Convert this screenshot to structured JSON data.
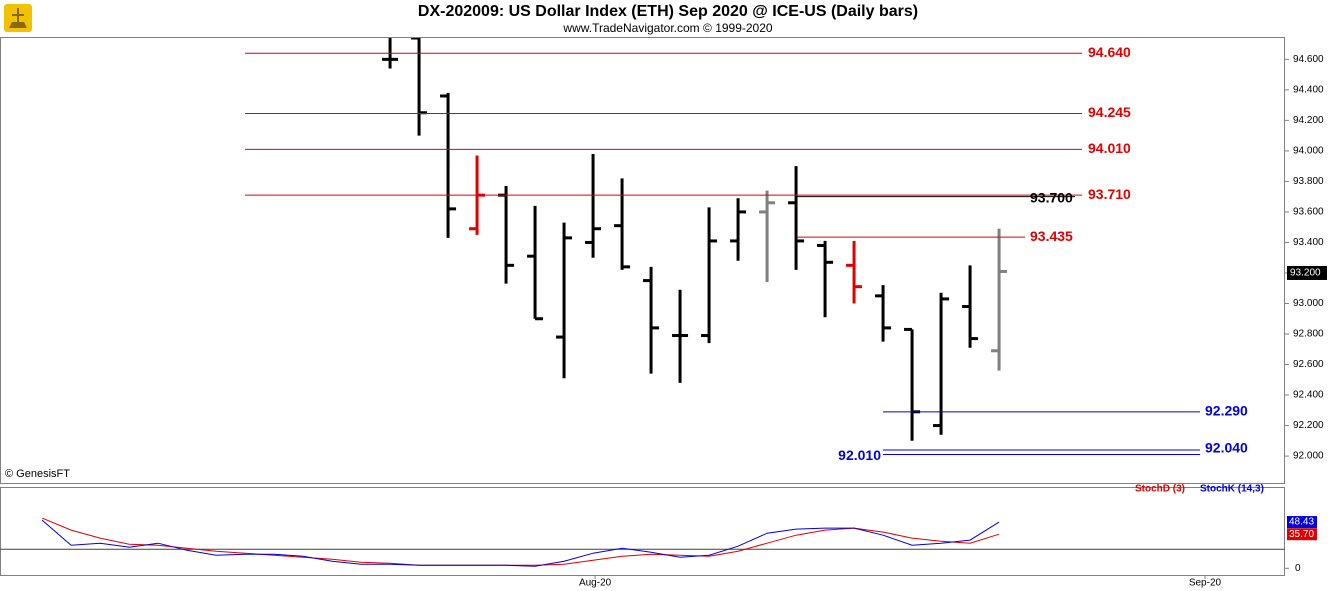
{
  "chart_data": [
    {
      "type": "ohlc",
      "title": "DX-202009:  US Dollar Index (ETH) Sep 2020 @ ICE-US  (Daily bars)",
      "subtitle": "www.TradeNavigator.com © 1999-2020",
      "source": "© GenesisFT",
      "x": [
        0,
        1,
        2,
        3,
        4,
        5,
        6,
        7,
        8,
        9,
        10,
        11,
        12,
        13,
        14,
        15,
        16,
        17,
        18,
        19,
        20,
        21
      ],
      "open": [
        94.6,
        94.74,
        94.36,
        93.49,
        93.71,
        93.31,
        92.78,
        93.4,
        93.51,
        93.15,
        92.79,
        92.79,
        93.41,
        93.6,
        93.66,
        93.38,
        93.25,
        93.05,
        92.83,
        92.2,
        92.98,
        92.69
      ],
      "high": [
        94.75,
        94.74,
        94.38,
        93.97,
        93.77,
        93.64,
        93.53,
        93.98,
        93.82,
        93.24,
        93.09,
        93.63,
        93.69,
        93.74,
        93.9,
        93.41,
        93.41,
        93.12,
        92.83,
        93.07,
        93.25,
        93.49
      ],
      "low": [
        94.54,
        94.1,
        93.43,
        93.45,
        93.13,
        92.9,
        92.51,
        93.3,
        93.22,
        92.54,
        92.48,
        92.74,
        93.28,
        93.14,
        93.22,
        92.91,
        93.0,
        92.75,
        92.1,
        92.14,
        92.71,
        92.56
      ],
      "close": [
        94.6,
        94.25,
        93.62,
        93.71,
        93.25,
        92.9,
        93.43,
        93.49,
        93.24,
        92.84,
        92.79,
        93.41,
        93.6,
        93.66,
        93.41,
        93.27,
        93.11,
        92.84,
        92.29,
        93.03,
        92.77,
        93.21
      ],
      "colors": [
        "#000000",
        "#000000",
        "#000000",
        "#e00000",
        "#000000",
        "#000000",
        "#000000",
        "#000000",
        "#000000",
        "#000000",
        "#000000",
        "#000000",
        "#000000",
        "#808080",
        "#000000",
        "#000000",
        "#e00000",
        "#000000",
        "#000000",
        "#000000",
        "#000000",
        "#808080"
      ],
      "levels": [
        {
          "value": 94.64,
          "label": "94.640",
          "color": "#e00000"
        },
        {
          "value": 94.245,
          "label": "94.245",
          "color": "#e00000"
        },
        {
          "value": 94.01,
          "label": "94.010",
          "color": "#e00000"
        },
        {
          "value": 93.71,
          "label": "93.710",
          "color": "#e00000"
        },
        {
          "value": 93.7,
          "label": "93.700",
          "color": "#000000"
        },
        {
          "value": 93.435,
          "label": "93.435",
          "color": "#e00000"
        },
        {
          "value": 92.29,
          "label": "92.290",
          "color": "#0000e0"
        },
        {
          "value": 92.04,
          "label": "92.040",
          "color": "#0000e0"
        },
        {
          "value": 92.01,
          "label": "92.010",
          "color": "#0000e0"
        }
      ],
      "last_price": {
        "value": 93.2,
        "label": "93.200"
      },
      "xlim": [
        -13.45,
        30.86
      ],
      "xticks": [
        {
          "value": 7.07,
          "label": "Aug-20"
        },
        {
          "value": 28.1,
          "label": "Sep-20"
        }
      ],
      "ylim": [
        91.83,
        94.74
      ],
      "yticks": [
        {
          "value": 92.0,
          "label": "92.000"
        },
        {
          "value": 92.2,
          "label": "92.200"
        },
        {
          "value": 92.4,
          "label": "92.400"
        },
        {
          "value": 92.6,
          "label": "92.600"
        },
        {
          "value": 92.8,
          "label": "92.800"
        },
        {
          "value": 93.0,
          "label": "93.000"
        },
        {
          "value": 93.2,
          "label": "93.200"
        },
        {
          "value": 93.4,
          "label": "93.400"
        },
        {
          "value": 93.6,
          "label": "93.600"
        },
        {
          "value": 93.8,
          "label": "93.800"
        },
        {
          "value": 94.0,
          "label": "94.000"
        },
        {
          "value": 94.2,
          "label": "94.200"
        },
        {
          "value": 94.4,
          "label": "94.400"
        },
        {
          "value": 94.6,
          "label": "94.600"
        }
      ]
    },
    {
      "type": "line",
      "x": [
        -12,
        -11,
        -10,
        -9,
        -8,
        -7,
        -6,
        -5,
        -4,
        -3,
        -2,
        -1,
        0,
        1,
        2,
        3,
        4,
        5,
        6,
        7,
        8,
        9,
        10,
        11,
        12,
        13,
        14,
        15,
        16,
        17,
        18,
        19,
        20,
        21
      ],
      "series": [
        {
          "name": "StochD (3)",
          "color": "#e00000",
          "values": [
            52.6,
            40.0,
            31.6,
            25.3,
            24.2,
            21.1,
            17.9,
            15.8,
            13.7,
            11.6,
            9.5,
            6.3,
            5.3,
            3.2,
            3.2,
            3.2,
            3.2,
            3.2,
            4.2,
            8.4,
            12.6,
            14.7,
            13.7,
            12.6,
            17.9,
            26.3,
            34.7,
            40.0,
            42.1,
            37.9,
            31.6,
            28.4,
            26.3,
            35.7
          ],
          "value_labels": [
            null,
            null,
            null,
            null,
            null,
            null,
            null,
            null,
            null,
            null,
            null,
            null,
            null,
            null,
            null,
            null,
            null,
            null,
            null,
            null,
            null,
            null,
            null,
            null,
            null,
            null,
            null,
            null,
            null,
            null,
            null,
            null,
            null,
            "35.70"
          ]
        },
        {
          "name": "StochK (14,3)",
          "color": "#0000e0",
          "values": [
            50.5,
            24.2,
            26.3,
            22.1,
            26.3,
            18.9,
            13.7,
            14.7,
            14.7,
            12.6,
            7.4,
            4.2,
            4.2,
            3.2,
            3.2,
            3.2,
            3.2,
            2.1,
            7.4,
            15.8,
            21.1,
            16.8,
            11.6,
            13.7,
            23.2,
            36.8,
            41.1,
            42.1,
            42.1,
            34.7,
            24.2,
            26.3,
            29.5,
            48.43
          ]
        }
      ],
      "hlines": [
        20
      ],
      "xlim": [
        -13.45,
        30.86
      ],
      "ylim": [
        -7,
        82
      ],
      "yticks": [
        0
      ]
    }
  ]
}
